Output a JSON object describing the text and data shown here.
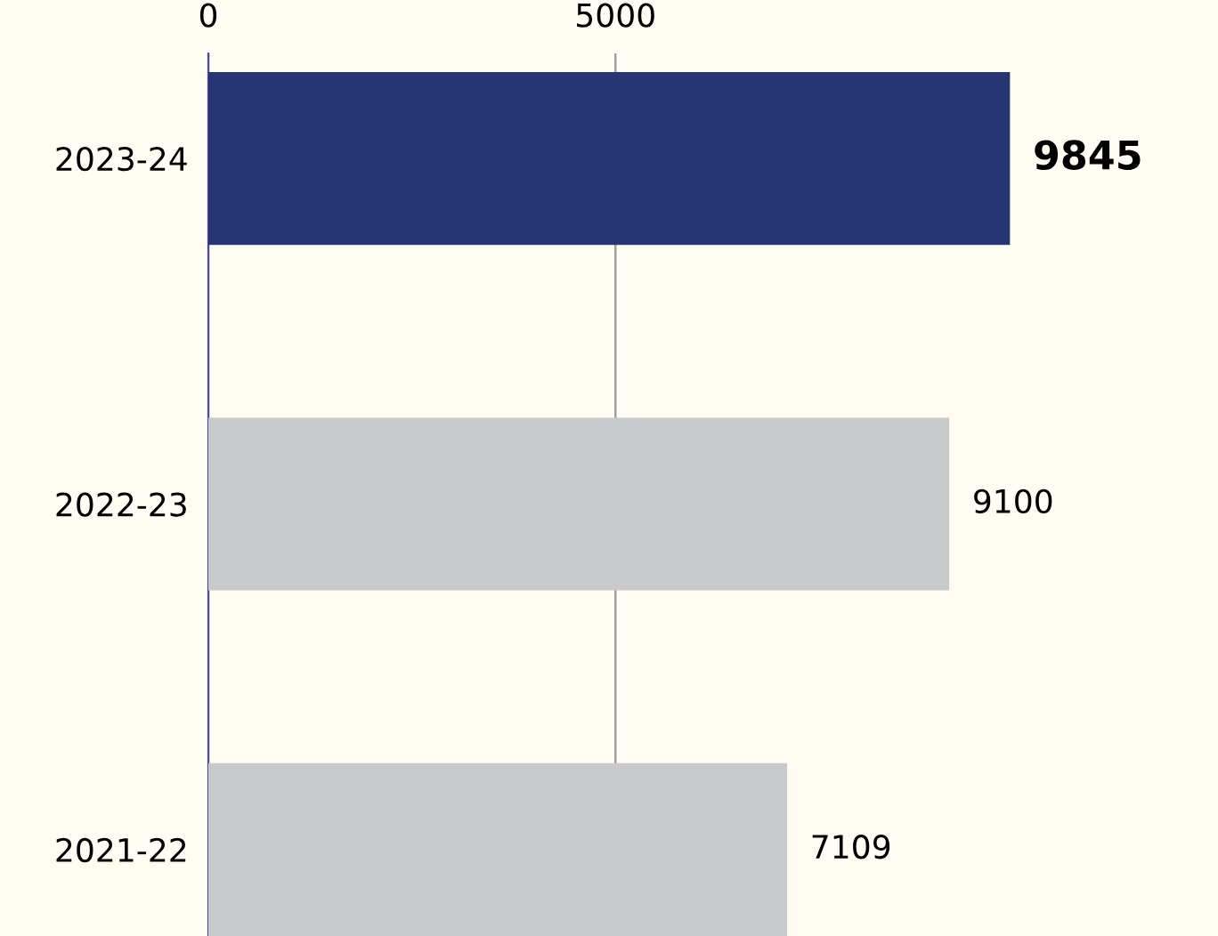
{
  "chart_data": {
    "type": "bar",
    "orientation": "horizontal",
    "categories": [
      "2023-24",
      "2022-23",
      "2021-22"
    ],
    "values": [
      9845,
      9100,
      7109
    ],
    "colors": [
      "#263673",
      "#c8c9ca",
      "#c8c9ca"
    ],
    "xlim": [
      0,
      12400
    ],
    "xticks": [
      0,
      5000
    ],
    "data_labels": true,
    "grid": "x",
    "legend": false
  }
}
